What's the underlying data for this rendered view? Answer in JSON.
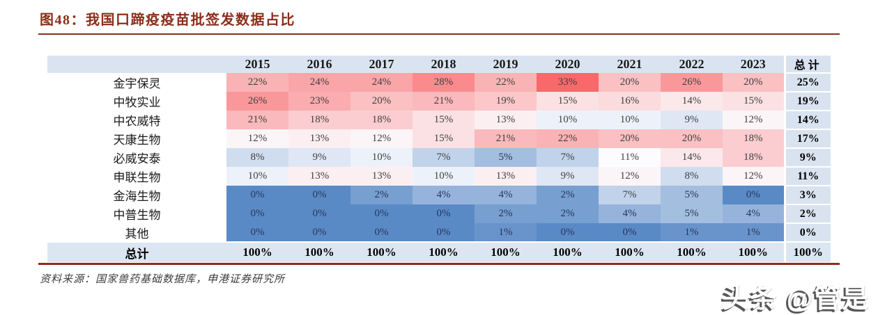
{
  "figure": {
    "title": "图48：我国口蹄疫疫苗批签发数据占比",
    "source": "资料来源：国家兽药基础数据库，申港证券研究所"
  },
  "watermark": {
    "text": "头条 @管是"
  },
  "colors": {
    "accent_rule": "#8B2E1A",
    "header_bg": "#DAE4F0",
    "total_col_bg": "#D9E3F0",
    "total_row_bg": "#DCE6F2",
    "heat_min": "#5A8AC6",
    "heat_mid": "#FCFCFF",
    "heat_max": "#F8696B"
  },
  "chart_data": {
    "type": "heatmap",
    "title": "我国口蹄疫疫苗批签发数据占比",
    "unit": "%",
    "columns": [
      "2015",
      "2016",
      "2017",
      "2018",
      "2019",
      "2020",
      "2021",
      "2022",
      "2023",
      "总计"
    ],
    "rows": [
      {
        "label": "金宇保灵",
        "values": [
          22,
          24,
          24,
          28,
          22,
          33,
          20,
          26,
          20
        ],
        "total": 25
      },
      {
        "label": "中牧实业",
        "values": [
          26,
          23,
          20,
          21,
          19,
          15,
          16,
          14,
          15
        ],
        "total": 19
      },
      {
        "label": "中农威特",
        "values": [
          21,
          18,
          18,
          15,
          13,
          10,
          10,
          9,
          12
        ],
        "total": 14
      },
      {
        "label": "天康生物",
        "values": [
          12,
          13,
          12,
          15,
          21,
          22,
          20,
          20,
          18
        ],
        "total": 17
      },
      {
        "label": "必威安泰",
        "values": [
          8,
          9,
          10,
          7,
          5,
          7,
          11,
          14,
          18
        ],
        "total": 9
      },
      {
        "label": "申联生物",
        "values": [
          10,
          13,
          13,
          10,
          13,
          9,
          12,
          8,
          12
        ],
        "total": 11
      },
      {
        "label": "金海生物",
        "values": [
          0,
          0,
          2,
          4,
          4,
          2,
          7,
          5,
          0
        ],
        "total": 3
      },
      {
        "label": "中普生物",
        "values": [
          0,
          0,
          0,
          0,
          2,
          2,
          4,
          5,
          4
        ],
        "total": 2
      },
      {
        "label": "其他",
        "values": [
          0,
          0,
          0,
          0,
          1,
          0,
          0,
          1,
          1
        ],
        "total": 0
      }
    ],
    "total_row": {
      "label": "总计",
      "values": [
        100,
        100,
        100,
        100,
        100,
        100,
        100,
        100,
        100
      ],
      "total": 100
    },
    "color_scale": {
      "min_value": 0,
      "mid_value": 11,
      "max_value": 33,
      "min_color": "#5A8AC6",
      "mid_color": "#FCFCFF",
      "max_color": "#F8696B"
    },
    "legend_position": "none",
    "grid": false
  }
}
